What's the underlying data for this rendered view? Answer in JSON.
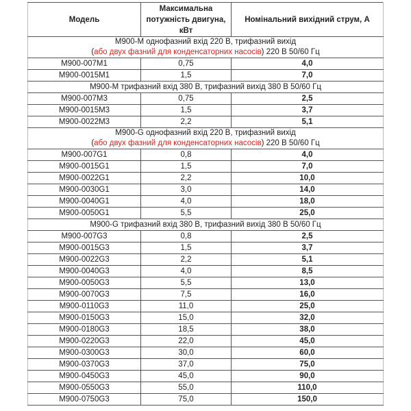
{
  "header": {
    "model": "Модель",
    "power": "Максимальна потужність двигуна, кВт",
    "current": "Номінальний вихідний струм, А"
  },
  "groups": [
    {
      "line1": "М900-М однофазний вхід 220 В, трифазний вихід",
      "paren_open": "(",
      "red_text": "або двух фазний для конденсаторних насосів",
      "line2_rest": ") 220 В 50/60 Гц",
      "rows": [
        [
          "M900-007M1",
          "0,75",
          "4,0"
        ],
        [
          "M900-0015M1",
          "1,5",
          "7,0"
        ]
      ]
    },
    {
      "line1": "М900-М трифазний вхід 380 В, трифазний вихід 380 В 50/60 Гц",
      "rows": [
        [
          "M900-007M3",
          "0,75",
          "2,5"
        ],
        [
          "M900-0015M3",
          "1,5",
          "3,7"
        ],
        [
          "M900-0022M3",
          "2,2",
          "5,1"
        ]
      ]
    },
    {
      "line1": "М900-G однофазний вхід 220 В, трифазний вихід",
      "paren_open": "(",
      "red_text": "або двух фазний для конденсаторних насосів",
      "line2_rest": ") 220 В 50/60 Гц",
      "rows": [
        [
          "M900-007G1",
          "0,8",
          "4,0"
        ],
        [
          "M900-0015G1",
          "1,5",
          "7,0"
        ],
        [
          "M900-0022G1",
          "2,2",
          "10,0"
        ],
        [
          "M900-0030G1",
          "3,0",
          "14,0"
        ],
        [
          "M900-0040G1",
          "4,0",
          "18,0"
        ],
        [
          "M900-0050G1",
          "5,5",
          "25,0"
        ]
      ]
    },
    {
      "line1": "М900-G трифазний вхід 380 В, трифазний вихід 380 В 50/60 Гц",
      "rows": [
        [
          "M900-007G3",
          "0,8",
          "2,5"
        ],
        [
          "M900-0015G3",
          "1,5",
          "3,7"
        ],
        [
          "M900-0022G3",
          "2,2",
          "5,1"
        ],
        [
          "M900-0040G3",
          "4,0",
          "8,5"
        ],
        [
          "M900-0050G3",
          "5,5",
          "13,0"
        ],
        [
          "M900-0070G3",
          "7,5",
          "16,0"
        ],
        [
          "M900-0110G3",
          "11,0",
          "25,0"
        ],
        [
          "M900-0150G3",
          "15,0",
          "32,0"
        ],
        [
          "M900-0180G3",
          "18,5",
          "38,0"
        ],
        [
          "M900-0220G3",
          "22,0",
          "45,0"
        ],
        [
          "M900-0300G3",
          "30,0",
          "60,0"
        ],
        [
          "M900-0370G3",
          "37,0",
          "75,0"
        ],
        [
          "M900-0450G3",
          "45,0",
          "90,0"
        ],
        [
          "M900-0550G3",
          "55,0",
          "110,0"
        ],
        [
          "M900-0750G3",
          "75,0",
          "150,0"
        ]
      ]
    }
  ],
  "colors": {
    "highlight": "#e0201b"
  }
}
